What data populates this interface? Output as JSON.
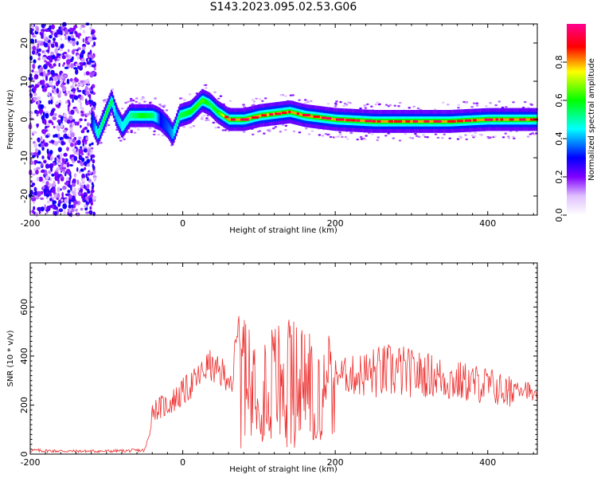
{
  "title": "S143.2023.095.02.53.G06",
  "chart_data": [
    {
      "type": "heatmap",
      "title": "S143.2023.095.02.53.G06",
      "xlabel": "Height of straight line (km)",
      "ylabel": "Frequency (Hz)",
      "xlim": [
        -200,
        465
      ],
      "ylim": [
        -25,
        25
      ],
      "x_ticks": [
        -200,
        0,
        200,
        400
      ],
      "y_ticks": [
        -20,
        -10,
        0,
        10,
        20
      ],
      "colorbar": {
        "label": "Normalized spectral amplitude",
        "range": [
          0.0,
          1.0
        ],
        "ticks": [
          0.0,
          0.2,
          0.4,
          0.6,
          0.8
        ],
        "colors": [
          "#ffffff",
          "#8000ff",
          "#0000ff",
          "#00ffff",
          "#00ff00",
          "#ffff00",
          "#ff0000",
          "#ff00a0"
        ]
      },
      "noise_region_x": [
        -200,
        -115
      ],
      "ridge": {
        "x": [
          -120,
          -112,
          -100,
          -94,
          -88,
          -80,
          -70,
          -55,
          -40,
          -30,
          -20,
          -14,
          -10,
          -5,
          10,
          25,
          35,
          45,
          60,
          80,
          100,
          120,
          140,
          160,
          180,
          200,
          250,
          300,
          350,
          400,
          465
        ],
        "y": [
          0,
          -4,
          2,
          5,
          1,
          -2,
          1,
          1,
          1,
          0,
          -2,
          -4,
          -2,
          1,
          2,
          5,
          4,
          2,
          0,
          0,
          1,
          1.5,
          2,
          1,
          0.5,
          0,
          -0.5,
          -0.5,
          -0.5,
          0,
          0
        ],
        "peak_amplitude": [
          0.3,
          0.5,
          0.6,
          0.55,
          0.4,
          0.45,
          0.5,
          0.6,
          0.55,
          0.3,
          0.35,
          0.4,
          0.5,
          0.55,
          0.6,
          0.65,
          0.55,
          0.6,
          0.9,
          0.85,
          0.8,
          0.75,
          0.8,
          0.85,
          0.9,
          0.85,
          0.9,
          0.95,
          0.9,
          0.95,
          0.9
        ]
      }
    },
    {
      "type": "line",
      "xlabel": "Height of straight line (km)",
      "ylabel": "SNR (10 * v/v)",
      "xlim": [
        -200,
        465
      ],
      "ylim": [
        0,
        780
      ],
      "x_ticks": [
        -200,
        0,
        200,
        400
      ],
      "y_ticks": [
        0,
        200,
        400,
        600
      ],
      "series": [
        {
          "color": "#ee3333",
          "x": [
            -200,
            -150,
            -100,
            -50,
            -45,
            -40,
            -30,
            -20,
            0,
            20,
            35,
            40,
            50,
            60,
            65,
            70,
            75,
            80,
            90,
            100,
            110,
            120,
            140,
            160,
            180,
            190,
            200,
            220,
            250,
            280,
            300,
            330,
            350,
            380,
            400,
            420,
            430,
            435,
            450,
            465
          ],
          "base": [
            15,
            12,
            12,
            15,
            60,
            180,
            190,
            200,
            250,
            310,
            370,
            340,
            330,
            320,
            220,
            530,
            500,
            460,
            350,
            300,
            280,
            300,
            320,
            300,
            290,
            400,
            330,
            320,
            330,
            340,
            330,
            320,
            300,
            290,
            280,
            260,
            230,
            280,
            270,
            220
          ],
          "amp": [
            8,
            6,
            6,
            8,
            30,
            40,
            50,
            50,
            60,
            60,
            60,
            60,
            70,
            60,
            60,
            80,
            100,
            200,
            220,
            230,
            260,
            250,
            240,
            250,
            240,
            150,
            60,
            80,
            110,
            120,
            100,
            90,
            90,
            80,
            80,
            70,
            90,
            40,
            40,
            30
          ]
        }
      ]
    }
  ]
}
